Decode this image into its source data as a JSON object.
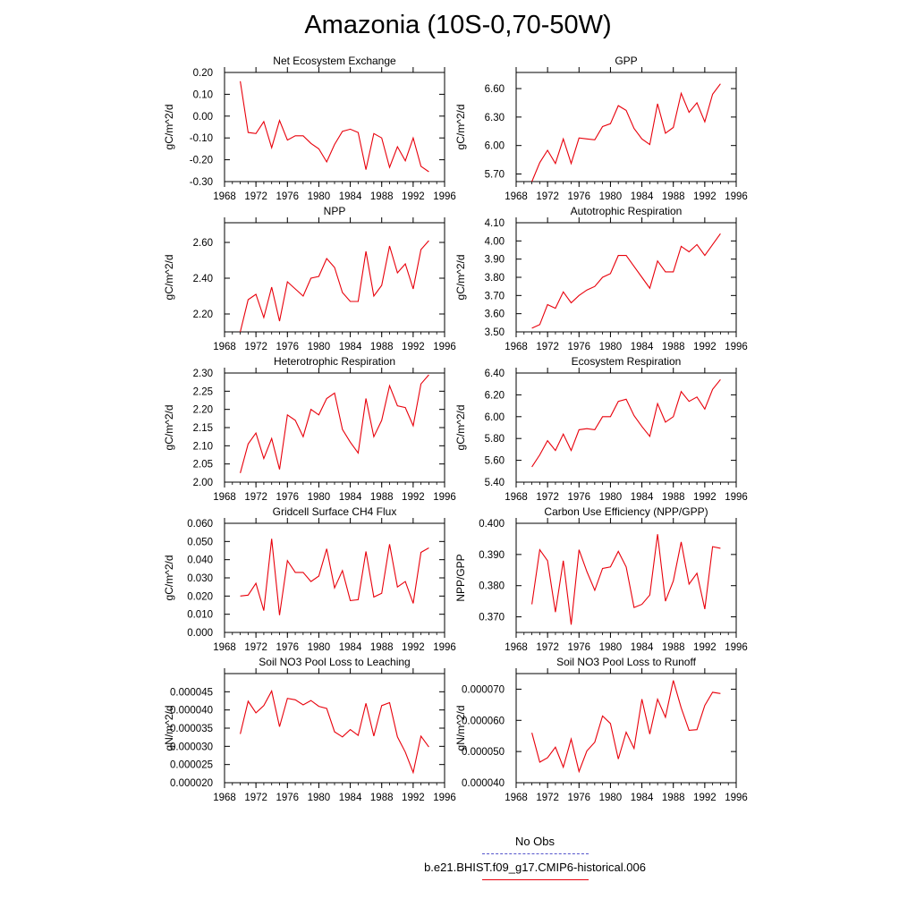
{
  "title": "Amazonia (10S-0,70-50W)",
  "legend": [
    {
      "label": "No Obs",
      "color": "#5555cc",
      "style": "dashed"
    },
    {
      "label": "b.e21.BHIST.f09_g17.CMIP6-historical.006",
      "color": "#e8000b",
      "style": "solid"
    }
  ],
  "chart_data": [
    {
      "type": "line",
      "title": "Net Ecosystem Exchange",
      "ylabel": "gC/m^2/d",
      "xlim": [
        1968,
        1996
      ],
      "xticks": [
        "1968",
        "1972",
        "1976",
        "1980",
        "1984",
        "1988",
        "1992",
        "1996"
      ],
      "ylim": [
        -0.3,
        0.2
      ],
      "yticks": [
        "-0.30",
        "-0.20",
        "-0.10",
        "0.00",
        "0.10",
        "0.20"
      ],
      "ytick_values": [
        -0.3,
        -0.2,
        -0.1,
        0.0,
        0.1,
        0.2
      ],
      "x": [
        1970,
        1971,
        1972,
        1973,
        1974,
        1975,
        1976,
        1977,
        1978,
        1979,
        1980,
        1981,
        1982,
        1983,
        1984,
        1985,
        1986,
        1987,
        1988,
        1989,
        1990,
        1991,
        1992,
        1993,
        1994
      ],
      "series": [
        {
          "values": [
            0.16,
            -0.075,
            -0.08,
            -0.025,
            -0.145,
            -0.02,
            -0.11,
            -0.09,
            -0.09,
            -0.125,
            -0.15,
            -0.21,
            -0.13,
            -0.07,
            -0.06,
            -0.075,
            -0.245,
            -0.08,
            -0.1,
            -0.235,
            -0.14,
            -0.205,
            -0.1,
            -0.23,
            -0.255
          ]
        }
      ]
    },
    {
      "type": "line",
      "title": "GPP",
      "ylabel": "gC/m^2/d",
      "xlim": [
        1968,
        1996
      ],
      "xticks": [
        "1968",
        "1972",
        "1976",
        "1980",
        "1984",
        "1988",
        "1992",
        "1996"
      ],
      "ylim": [
        5.62,
        6.77
      ],
      "yticks": [
        "5.70",
        "6.00",
        "6.30",
        "6.60"
      ],
      "ytick_values": [
        5.7,
        6.0,
        6.3,
        6.6
      ],
      "x": [
        1970,
        1971,
        1972,
        1973,
        1974,
        1975,
        1976,
        1977,
        1978,
        1979,
        1980,
        1981,
        1982,
        1983,
        1984,
        1985,
        1986,
        1987,
        1988,
        1989,
        1990,
        1991,
        1992,
        1993,
        1994
      ],
      "series": [
        {
          "values": [
            5.62,
            5.82,
            5.95,
            5.81,
            6.07,
            5.81,
            6.08,
            6.07,
            6.06,
            6.2,
            6.23,
            6.42,
            6.37,
            6.18,
            6.07,
            6.01,
            6.44,
            6.13,
            6.19,
            6.55,
            6.35,
            6.45,
            6.25,
            6.54,
            6.65
          ]
        }
      ]
    },
    {
      "type": "line",
      "title": "NPP",
      "ylabel": "gC/m^2/d",
      "xlim": [
        1968,
        1996
      ],
      "xticks": [
        "1968",
        "1972",
        "1976",
        "1980",
        "1984",
        "1988",
        "1992",
        "1996"
      ],
      "ylim": [
        2.1,
        2.71
      ],
      "yticks": [
        "2.20",
        "2.40",
        "2.60"
      ],
      "ytick_values": [
        2.2,
        2.4,
        2.6
      ],
      "x": [
        1970,
        1971,
        1972,
        1973,
        1974,
        1975,
        1976,
        1977,
        1978,
        1979,
        1980,
        1981,
        1982,
        1983,
        1984,
        1985,
        1986,
        1987,
        1988,
        1989,
        1990,
        1991,
        1992,
        1993,
        1994
      ],
      "series": [
        {
          "values": [
            2.1,
            2.28,
            2.31,
            2.18,
            2.35,
            2.16,
            2.38,
            2.34,
            2.3,
            2.4,
            2.41,
            2.51,
            2.46,
            2.32,
            2.27,
            2.27,
            2.55,
            2.3,
            2.36,
            2.58,
            2.43,
            2.48,
            2.34,
            2.56,
            2.61
          ]
        }
      ]
    },
    {
      "type": "line",
      "title": "Autotrophic Respiration",
      "ylabel": "gC/m^2/d",
      "xlim": [
        1968,
        1996
      ],
      "xticks": [
        "1968",
        "1972",
        "1976",
        "1980",
        "1984",
        "1988",
        "1992",
        "1996"
      ],
      "ylim": [
        3.5,
        4.1
      ],
      "yticks": [
        "3.50",
        "3.60",
        "3.70",
        "3.80",
        "3.90",
        "4.00",
        "4.10"
      ],
      "ytick_values": [
        3.5,
        3.6,
        3.7,
        3.8,
        3.9,
        4.0,
        4.1
      ],
      "x": [
        1970,
        1971,
        1972,
        1973,
        1974,
        1975,
        1976,
        1977,
        1978,
        1979,
        1980,
        1981,
        1982,
        1983,
        1984,
        1985,
        1986,
        1987,
        1988,
        1989,
        1990,
        1991,
        1992,
        1993,
        1994
      ],
      "series": [
        {
          "values": [
            3.52,
            3.54,
            3.65,
            3.63,
            3.72,
            3.66,
            3.7,
            3.73,
            3.75,
            3.8,
            3.82,
            3.92,
            3.92,
            3.86,
            3.8,
            3.74,
            3.89,
            3.83,
            3.83,
            3.97,
            3.94,
            3.98,
            3.92,
            3.98,
            4.04
          ]
        }
      ]
    },
    {
      "type": "line",
      "title": "Heterotrophic Respiration",
      "ylabel": "gC/m^2/d",
      "xlim": [
        1968,
        1996
      ],
      "xticks": [
        "1968",
        "1972",
        "1976",
        "1980",
        "1984",
        "1988",
        "1992",
        "1996"
      ],
      "ylim": [
        2.0,
        2.3
      ],
      "yticks": [
        "2.00",
        "2.05",
        "2.10",
        "2.15",
        "2.20",
        "2.25",
        "2.30"
      ],
      "ytick_values": [
        2.0,
        2.05,
        2.1,
        2.15,
        2.2,
        2.25,
        2.3
      ],
      "x": [
        1970,
        1971,
        1972,
        1973,
        1974,
        1975,
        1976,
        1977,
        1978,
        1979,
        1980,
        1981,
        1982,
        1983,
        1984,
        1985,
        1986,
        1987,
        1988,
        1989,
        1990,
        1991,
        1992,
        1993,
        1994
      ],
      "series": [
        {
          "values": [
            2.025,
            2.105,
            2.135,
            2.065,
            2.12,
            2.035,
            2.185,
            2.17,
            2.125,
            2.2,
            2.185,
            2.23,
            2.245,
            2.145,
            2.11,
            2.08,
            2.23,
            2.125,
            2.17,
            2.265,
            2.21,
            2.205,
            2.155,
            2.27,
            2.295
          ]
        }
      ]
    },
    {
      "type": "line",
      "title": "Ecosystem Respiration",
      "ylabel": "gC/m^2/d",
      "xlim": [
        1968,
        1996
      ],
      "xticks": [
        "1968",
        "1972",
        "1976",
        "1980",
        "1984",
        "1988",
        "1992",
        "1996"
      ],
      "ylim": [
        5.4,
        6.4
      ],
      "yticks": [
        "5.40",
        "5.60",
        "5.80",
        "6.00",
        "6.20",
        "6.40"
      ],
      "ytick_values": [
        5.4,
        5.6,
        5.8,
        6.0,
        6.2,
        6.4
      ],
      "x": [
        1970,
        1971,
        1972,
        1973,
        1974,
        1975,
        1976,
        1977,
        1978,
        1979,
        1980,
        1981,
        1982,
        1983,
        1984,
        1985,
        1986,
        1987,
        1988,
        1989,
        1990,
        1991,
        1992,
        1993,
        1994
      ],
      "series": [
        {
          "values": [
            5.54,
            5.65,
            5.78,
            5.69,
            5.84,
            5.69,
            5.88,
            5.89,
            5.88,
            6.0,
            6.0,
            6.14,
            6.16,
            6.01,
            5.91,
            5.82,
            6.12,
            5.95,
            6.0,
            6.23,
            6.14,
            6.18,
            6.07,
            6.25,
            6.34
          ]
        }
      ]
    },
    {
      "type": "line",
      "title": "Gridcell Surface CH4 Flux",
      "ylabel": "gC/m^2/d",
      "xlim": [
        1968,
        1996
      ],
      "xticks": [
        "1968",
        "1972",
        "1976",
        "1980",
        "1984",
        "1988",
        "1992",
        "1996"
      ],
      "ylim": [
        0.0,
        0.06
      ],
      "yticks": [
        "0.000",
        "0.010",
        "0.020",
        "0.030",
        "0.040",
        "0.050",
        "0.060"
      ],
      "ytick_values": [
        0.0,
        0.01,
        0.02,
        0.03,
        0.04,
        0.05,
        0.06
      ],
      "x": [
        1970,
        1971,
        1972,
        1973,
        1974,
        1975,
        1976,
        1977,
        1978,
        1979,
        1980,
        1981,
        1982,
        1983,
        1984,
        1985,
        1986,
        1987,
        1988,
        1989,
        1990,
        1991,
        1992,
        1993,
        1994
      ],
      "series": [
        {
          "values": [
            0.02,
            0.0205,
            0.027,
            0.012,
            0.0515,
            0.0095,
            0.0395,
            0.033,
            0.033,
            0.028,
            0.031,
            0.046,
            0.0245,
            0.034,
            0.0175,
            0.018,
            0.0445,
            0.0195,
            0.0215,
            0.0485,
            0.025,
            0.028,
            0.016,
            0.044,
            0.0465
          ]
        }
      ]
    },
    {
      "type": "line",
      "title": "Carbon Use Efficiency (NPP/GPP)",
      "ylabel": "NPP/GPP",
      "xlim": [
        1968,
        1996
      ],
      "xticks": [
        "1968",
        "1972",
        "1976",
        "1980",
        "1984",
        "1988",
        "1992",
        "1996"
      ],
      "ylim": [
        0.365,
        0.4
      ],
      "yticks": [
        "0.370",
        "0.380",
        "0.390",
        "0.400"
      ],
      "ytick_values": [
        0.37,
        0.38,
        0.39,
        0.4
      ],
      "x": [
        1970,
        1971,
        1972,
        1973,
        1974,
        1975,
        1976,
        1977,
        1978,
        1979,
        1980,
        1981,
        1982,
        1983,
        1984,
        1985,
        1986,
        1987,
        1988,
        1989,
        1990,
        1991,
        1992,
        1993,
        1994
      ],
      "series": [
        {
          "values": [
            0.374,
            0.3915,
            0.388,
            0.3715,
            0.388,
            0.3675,
            0.3915,
            0.3845,
            0.3785,
            0.3855,
            0.386,
            0.391,
            0.386,
            0.373,
            0.374,
            0.377,
            0.3965,
            0.375,
            0.3815,
            0.394,
            0.3805,
            0.384,
            0.3725,
            0.3925,
            0.392
          ]
        }
      ]
    },
    {
      "type": "line",
      "title": "Soil NO3 Pool Loss to Leaching",
      "ylabel": "gN/m^2/d",
      "xlim": [
        1968,
        1996
      ],
      "xticks": [
        "1968",
        "1972",
        "1976",
        "1980",
        "1984",
        "1988",
        "1992",
        "1996"
      ],
      "ylim": [
        2e-05,
        5e-05
      ],
      "yticks": [
        "0.000020",
        "0.000025",
        "0.000030",
        "0.000035",
        "0.000040",
        "0.000045"
      ],
      "ytick_values": [
        2e-05,
        2.5e-05,
        3e-05,
        3.5e-05,
        4e-05,
        4.5e-05
      ],
      "x": [
        1970,
        1971,
        1972,
        1973,
        1974,
        1975,
        1976,
        1977,
        1978,
        1979,
        1980,
        1981,
        1982,
        1983,
        1984,
        1985,
        1986,
        1987,
        1988,
        1989,
        1990,
        1991,
        1992,
        1993,
        1994
      ],
      "series": [
        {
          "values": [
            3.34e-05,
            4.24e-05,
            3.92e-05,
            4.12e-05,
            4.52e-05,
            3.54e-05,
            4.32e-05,
            4.28e-05,
            4.14e-05,
            4.26e-05,
            4.1e-05,
            4.04e-05,
            3.4e-05,
            3.26e-05,
            3.46e-05,
            3.3e-05,
            4.18e-05,
            3.28e-05,
            4.12e-05,
            4.2e-05,
            3.26e-05,
            2.84e-05,
            2.28e-05,
            3.28e-05,
            2.98e-05
          ]
        }
      ]
    },
    {
      "type": "line",
      "title": "Soil NO3 Pool Loss to Runoff",
      "ylabel": "gN/m^2/d",
      "xlim": [
        1968,
        1996
      ],
      "xticks": [
        "1968",
        "1972",
        "1976",
        "1980",
        "1984",
        "1988",
        "1992",
        "1996"
      ],
      "ylim": [
        4e-05,
        7.5e-05
      ],
      "yticks": [
        "0.000040",
        "0.000050",
        "0.000060",
        "0.000070"
      ],
      "ytick_values": [
        4e-05,
        5e-05,
        6e-05,
        7e-05
      ],
      "x": [
        1970,
        1971,
        1972,
        1973,
        1974,
        1975,
        1976,
        1977,
        1978,
        1979,
        1980,
        1981,
        1982,
        1983,
        1984,
        1985,
        1986,
        1987,
        1988,
        1989,
        1990,
        1991,
        1992,
        1993,
        1994
      ],
      "series": [
        {
          "values": [
            5.6e-05,
            4.66e-05,
            4.8e-05,
            5.14e-05,
            4.5e-05,
            5.4e-05,
            4.36e-05,
            5.02e-05,
            5.3e-05,
            6.14e-05,
            5.9e-05,
            4.76e-05,
            5.62e-05,
            5.1e-05,
            6.68e-05,
            5.56e-05,
            6.68e-05,
            6.1e-05,
            7.28e-05,
            6.4e-05,
            5.68e-05,
            5.7e-05,
            6.48e-05,
            6.9e-05,
            6.86e-05
          ]
        }
      ]
    }
  ]
}
